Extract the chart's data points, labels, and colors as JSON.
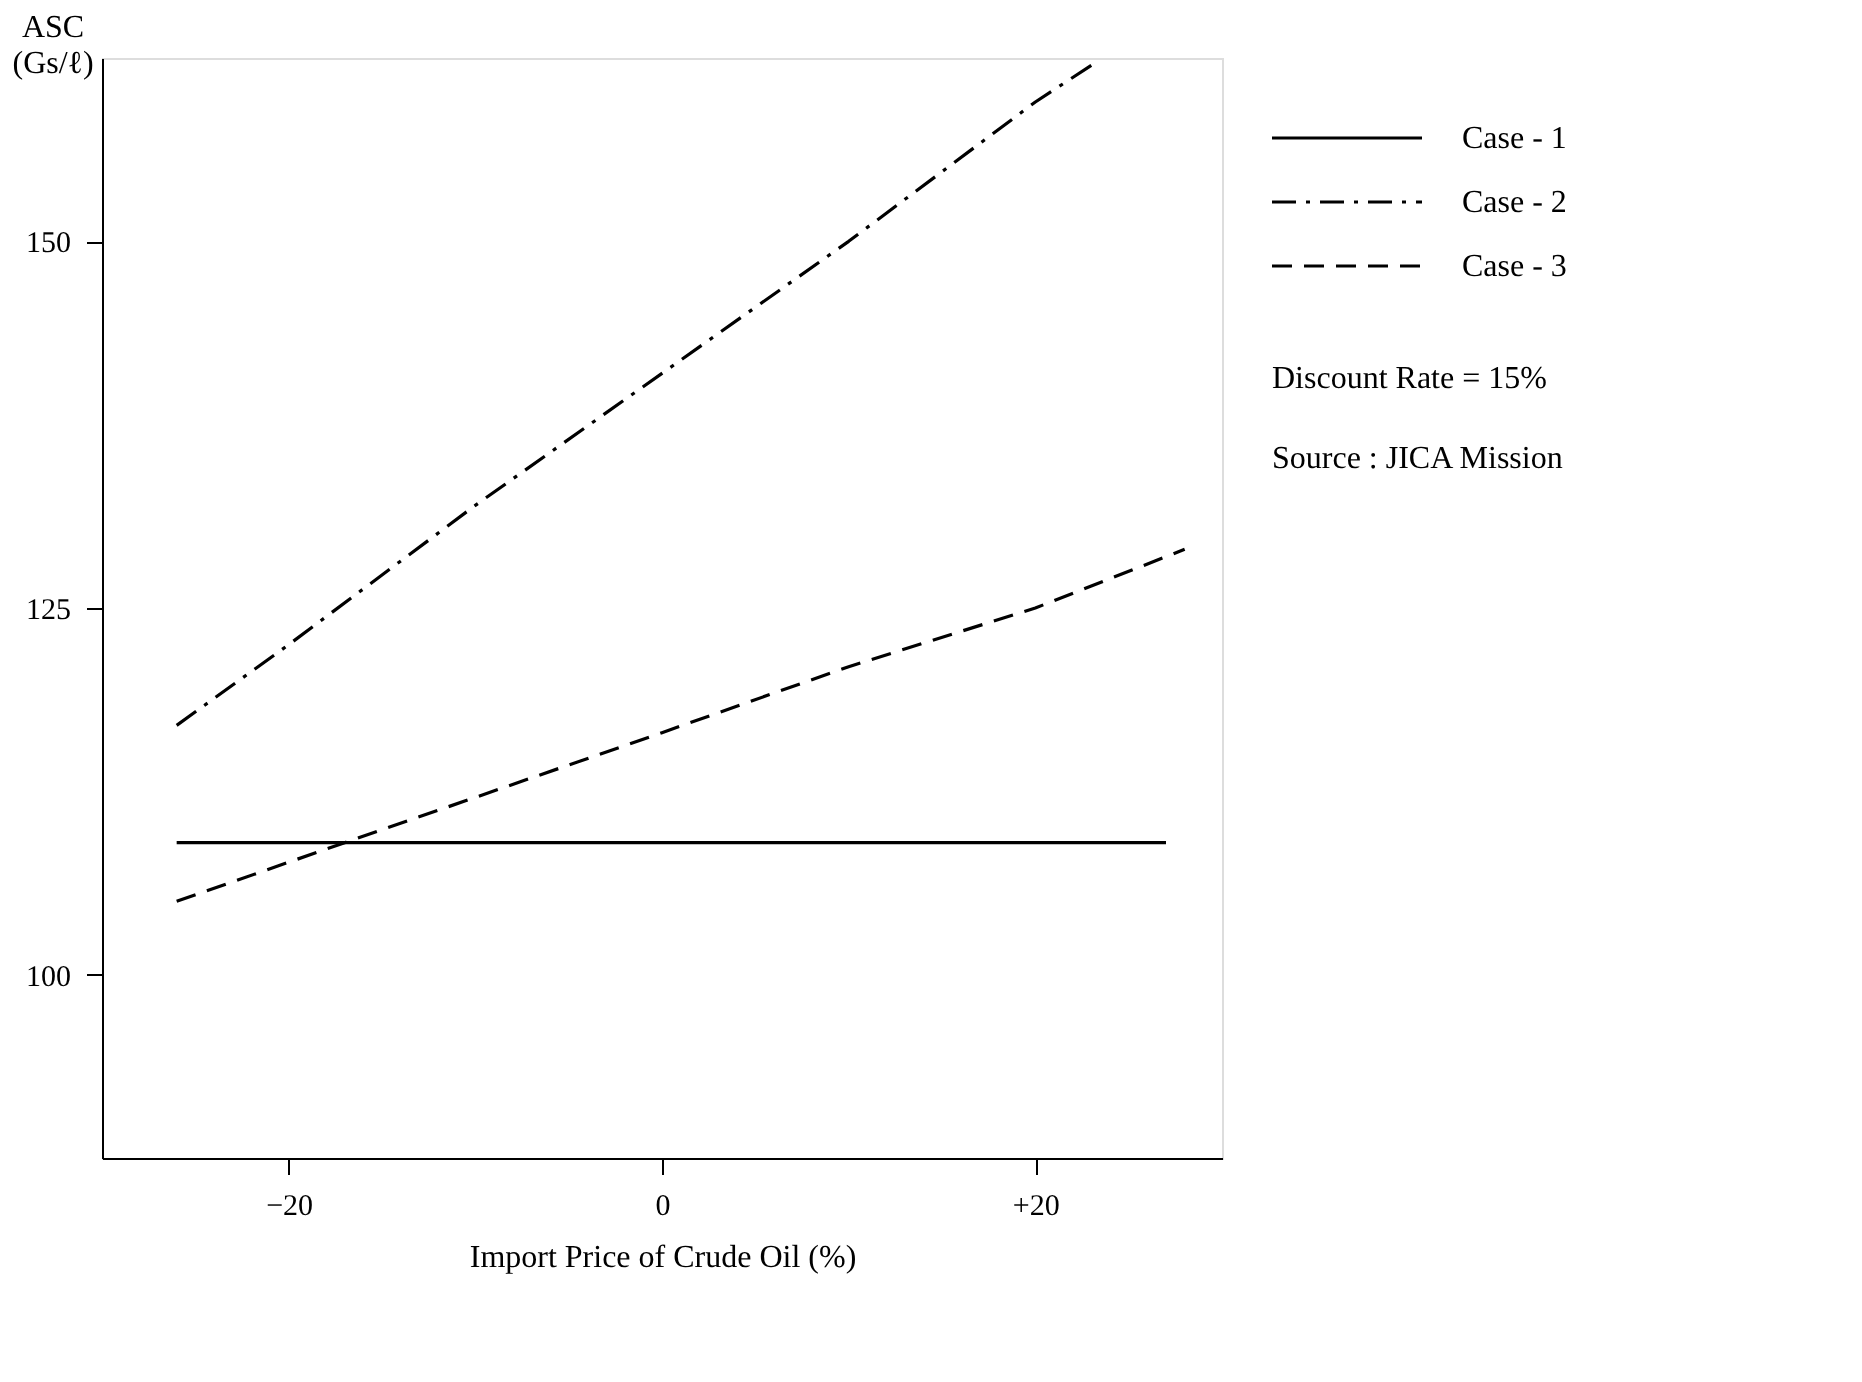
{
  "chart_data": {
    "type": "line",
    "xlabel": "Import Price of Crude Oil (%)",
    "ylabel": "ASC\n(Gs/ℓ)",
    "xlim": [
      -30,
      30
    ],
    "ylim": [
      87.5,
      162.5
    ],
    "xticks": [
      {
        "value": -20,
        "label": "−20"
      },
      0,
      {
        "value": 20,
        "label": "+20"
      }
    ],
    "yticks": [
      100,
      125,
      150
    ],
    "grid": false,
    "legend": "right",
    "marker": "none",
    "series": [
      {
        "name": "Case - 1",
        "color": "#000000",
        "line_style": "solid",
        "x": [
          -26,
          27
        ],
        "values": [
          109,
          109
        ]
      },
      {
        "name": "Case - 2",
        "color": "#000000",
        "line_style": "dashdot",
        "x": [
          -26,
          -20,
          -10,
          0,
          10,
          20,
          23
        ],
        "values": [
          117,
          122.5,
          132,
          141,
          150,
          159.5,
          162
        ]
      },
      {
        "name": "Case - 3",
        "color": "#000000",
        "line_style": "dashed",
        "x": [
          -26,
          -17,
          0,
          10,
          20,
          28
        ],
        "values": [
          105,
          109,
          116.5,
          121,
          125,
          129
        ]
      }
    ],
    "annotations": [
      "Discount Rate = 15%",
      "Source : JICA Mission"
    ]
  }
}
